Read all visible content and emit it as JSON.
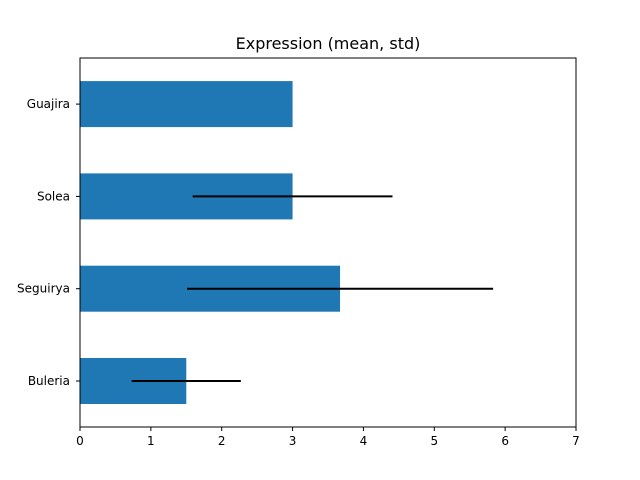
{
  "chart_data": {
    "type": "bar",
    "orientation": "horizontal",
    "title": "Expression (mean, std)",
    "xlabel": "",
    "ylabel": "",
    "categories": [
      "Buleria",
      "Seguirya",
      "Solea",
      "Guajira"
    ],
    "values": [
      1.5,
      3.67,
      3.0,
      3.0
    ],
    "error": [
      0.77,
      2.16,
      1.41,
      0.0
    ],
    "xlim": [
      0,
      7
    ],
    "xticks": [
      0,
      1,
      2,
      3,
      4,
      5,
      6,
      7
    ],
    "grid": false,
    "bar_color": "#1f77b4",
    "error_color": "#000000"
  }
}
